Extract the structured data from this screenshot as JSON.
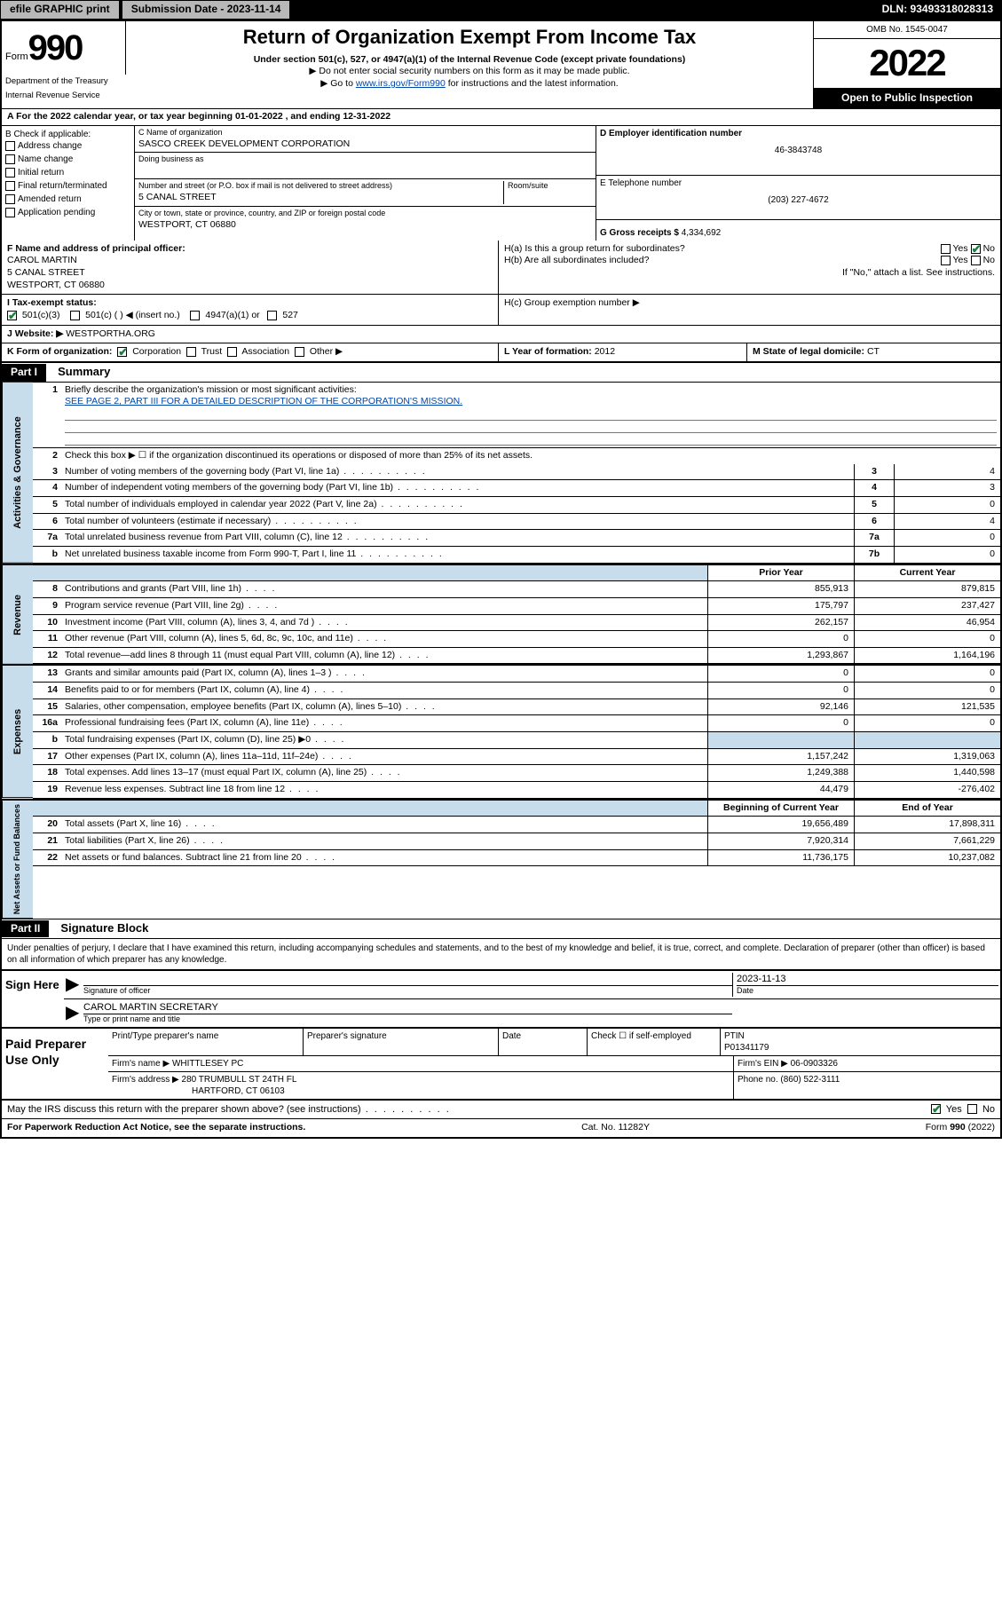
{
  "topbar": {
    "efile": "efile GRAPHIC print",
    "submission_label": "Submission Date - 2023-11-14",
    "dln_label": "DLN: 93493318028313"
  },
  "header": {
    "form_prefix": "Form",
    "form_number": "990",
    "dept": "Department of the Treasury",
    "irs": "Internal Revenue Service",
    "title": "Return of Organization Exempt From Income Tax",
    "sub1": "Under section 501(c), 527, or 4947(a)(1) of the Internal Revenue Code (except private foundations)",
    "sub2": "▶ Do not enter social security numbers on this form as it may be made public.",
    "sub3_pre": "▶ Go to ",
    "sub3_link": "www.irs.gov/Form990",
    "sub3_post": " for instructions and the latest information.",
    "omb": "OMB No. 1545-0047",
    "year": "2022",
    "inspection": "Open to Public Inspection"
  },
  "section_a": "A For the 2022 calendar year, or tax year beginning 01-01-2022    , and ending 12-31-2022",
  "col_b": {
    "header": "B Check if applicable:",
    "items": [
      "Address change",
      "Name change",
      "Initial return",
      "Final return/terminated",
      "Amended return",
      "Application pending"
    ]
  },
  "col_c": {
    "name_label": "C Name of organization",
    "name": "SASCO CREEK DEVELOPMENT CORPORATION",
    "dba_label": "Doing business as",
    "street_label": "Number and street (or P.O. box if mail is not delivered to street address)",
    "room_label": "Room/suite",
    "street": "5 CANAL STREET",
    "city_label": "City or town, state or province, country, and ZIP or foreign postal code",
    "city": "WESTPORT, CT  06880"
  },
  "col_d": {
    "ein_label": "D Employer identification number",
    "ein": "46-3843748",
    "phone_label": "E Telephone number",
    "phone": "(203) 227-4672",
    "gross_label": "G Gross receipts $ ",
    "gross": "4,334,692"
  },
  "row_f": {
    "label": "F Name and address of principal officer:",
    "name": "CAROL MARTIN",
    "street": "5 CANAL STREET",
    "city": "WESTPORT, CT  06880"
  },
  "row_h": {
    "ha": "H(a)  Is this a group return for subordinates?",
    "hb": "H(b)  Are all subordinates included?",
    "hb_note": "If \"No,\" attach a list. See instructions.",
    "hc": "H(c)  Group exemption number ▶"
  },
  "row_i": {
    "label": "I    Tax-exempt status:",
    "opt1": "501(c)(3)",
    "opt2": "501(c) (  ) ◀ (insert no.)",
    "opt3": "4947(a)(1) or",
    "opt4": "527"
  },
  "row_j": {
    "label": "J   Website: ▶ ",
    "value": "WESTPORTHA.ORG"
  },
  "row_k": {
    "label": "K Form of organization:",
    "opts": [
      "Corporation",
      "Trust",
      "Association",
      "Other ▶"
    ],
    "l_label": "L Year of formation: ",
    "l_val": "2012",
    "m_label": "M State of legal domicile: ",
    "m_val": "CT"
  },
  "part1": {
    "hdr": "Part I",
    "title": "Summary"
  },
  "summary": {
    "q1": "Briefly describe the organization's mission or most significant activities:",
    "q1_val": "SEE PAGE 2, PART III FOR A DETAILED DESCRIPTION OF THE CORPORATION'S MISSION.",
    "q2": "Check this box ▶ ☐ if the organization discontinued its operations or disposed of more than 25% of its net assets.",
    "lines_ag": [
      {
        "n": "3",
        "t": "Number of voting members of the governing body (Part VI, line 1a)",
        "box": "3",
        "v": "4"
      },
      {
        "n": "4",
        "t": "Number of independent voting members of the governing body (Part VI, line 1b)",
        "box": "4",
        "v": "3"
      },
      {
        "n": "5",
        "t": "Total number of individuals employed in calendar year 2022 (Part V, line 2a)",
        "box": "5",
        "v": "0"
      },
      {
        "n": "6",
        "t": "Total number of volunteers (estimate if necessary)",
        "box": "6",
        "v": "4"
      },
      {
        "n": "7a",
        "t": "Total unrelated business revenue from Part VIII, column (C), line 12",
        "box": "7a",
        "v": "0"
      },
      {
        "n": "b",
        "t": "Net unrelated business taxable income from Form 990-T, Part I, line 11",
        "box": "7b",
        "v": "0"
      }
    ],
    "col_hdrs": {
      "prior": "Prior Year",
      "current": "Current Year"
    },
    "revenue": [
      {
        "n": "8",
        "t": "Contributions and grants (Part VIII, line 1h)",
        "p": "855,913",
        "c": "879,815"
      },
      {
        "n": "9",
        "t": "Program service revenue (Part VIII, line 2g)",
        "p": "175,797",
        "c": "237,427"
      },
      {
        "n": "10",
        "t": "Investment income (Part VIII, column (A), lines 3, 4, and 7d )",
        "p": "262,157",
        "c": "46,954"
      },
      {
        "n": "11",
        "t": "Other revenue (Part VIII, column (A), lines 5, 6d, 8c, 9c, 10c, and 11e)",
        "p": "0",
        "c": "0"
      },
      {
        "n": "12",
        "t": "Total revenue—add lines 8 through 11 (must equal Part VIII, column (A), line 12)",
        "p": "1,293,867",
        "c": "1,164,196"
      }
    ],
    "expenses": [
      {
        "n": "13",
        "t": "Grants and similar amounts paid (Part IX, column (A), lines 1–3 )",
        "p": "0",
        "c": "0"
      },
      {
        "n": "14",
        "t": "Benefits paid to or for members (Part IX, column (A), line 4)",
        "p": "0",
        "c": "0"
      },
      {
        "n": "15",
        "t": "Salaries, other compensation, employee benefits (Part IX, column (A), lines 5–10)",
        "p": "92,146",
        "c": "121,535"
      },
      {
        "n": "16a",
        "t": "Professional fundraising fees (Part IX, column (A), line 11e)",
        "p": "0",
        "c": "0"
      },
      {
        "n": "b",
        "t": "Total fundraising expenses (Part IX, column (D), line 25) ▶0",
        "p": "",
        "c": "",
        "shade": true
      },
      {
        "n": "17",
        "t": "Other expenses (Part IX, column (A), lines 11a–11d, 11f–24e)",
        "p": "1,157,242",
        "c": "1,319,063"
      },
      {
        "n": "18",
        "t": "Total expenses. Add lines 13–17 (must equal Part IX, column (A), line 25)",
        "p": "1,249,388",
        "c": "1,440,598"
      },
      {
        "n": "19",
        "t": "Revenue less expenses. Subtract line 18 from line 12",
        "p": "44,479",
        "c": "-276,402"
      }
    ],
    "net_hdrs": {
      "begin": "Beginning of Current Year",
      "end": "End of Year"
    },
    "netassets": [
      {
        "n": "20",
        "t": "Total assets (Part X, line 16)",
        "p": "19,656,489",
        "c": "17,898,311"
      },
      {
        "n": "21",
        "t": "Total liabilities (Part X, line 26)",
        "p": "7,920,314",
        "c": "7,661,229"
      },
      {
        "n": "22",
        "t": "Net assets or fund balances. Subtract line 21 from line 20",
        "p": "11,736,175",
        "c": "10,237,082"
      }
    ]
  },
  "vtabs": {
    "ag": "Activities & Governance",
    "rev": "Revenue",
    "exp": "Expenses",
    "net": "Net Assets or Fund Balances"
  },
  "part2": {
    "hdr": "Part II",
    "title": "Signature Block"
  },
  "sig": {
    "penalty": "Under penalties of perjury, I declare that I have examined this return, including accompanying schedules and statements, and to the best of my knowledge and belief, it is true, correct, and complete. Declaration of preparer (other than officer) is based on all information of which preparer has any knowledge.",
    "sign_here": "Sign Here",
    "officer_sig_label": "Signature of officer",
    "date_label": "Date",
    "date_val": "2023-11-13",
    "officer_name": "CAROL MARTIN SECRETARY",
    "officer_name_label": "Type or print name and title"
  },
  "preparer": {
    "label": "Paid Preparer Use Only",
    "hdr": [
      "Print/Type preparer's name",
      "Preparer's signature",
      "Date"
    ],
    "check_label": "Check ☐ if self-employed",
    "ptin_label": "PTIN",
    "ptin": "P01341179",
    "firm_name_label": "Firm's name    ▶ ",
    "firm_name": "WHITTLESEY PC",
    "firm_ein_label": "Firm's EIN ▶ ",
    "firm_ein": "06-0903326",
    "firm_addr_label": "Firm's address ▶ ",
    "firm_addr1": "280 TRUMBULL ST 24TH FL",
    "firm_addr2": "HARTFORD, CT  06103",
    "phone_label": "Phone no. ",
    "phone": "(860) 522-3111"
  },
  "footer": {
    "discuss": "May the IRS discuss this return with the preparer shown above? (see instructions)",
    "paperwork": "For Paperwork Reduction Act Notice, see the separate instructions.",
    "catno": "Cat. No. 11282Y",
    "formno": "Form 990 (2022)"
  },
  "yesno": {
    "yes": "Yes",
    "no": "No"
  }
}
